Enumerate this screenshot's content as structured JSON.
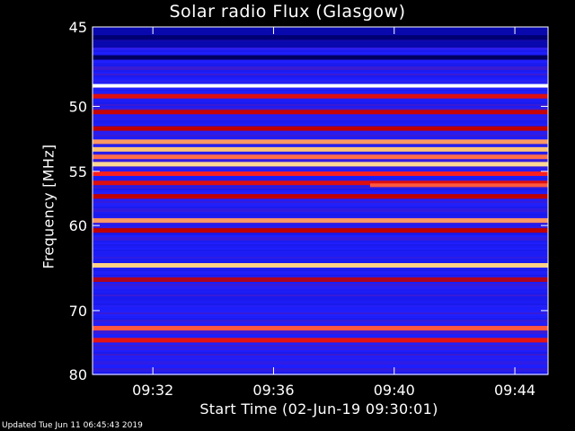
{
  "chart_data": {
    "type": "heatmap",
    "title": "Solar radio Flux (Glasgow)",
    "xlabel": "Start Time (02-Jun-19 09:30:01)",
    "ylabel": "Frequency [MHz]",
    "y_ticks": [
      45,
      50,
      55,
      60,
      70,
      80
    ],
    "x_ticks": [
      "09:32",
      "09:36",
      "09:40",
      "09:44"
    ],
    "x_tick_minutes": [
      32,
      36,
      40,
      44
    ],
    "x_range_minutes": [
      30.0,
      45.1
    ],
    "y_range_mhz": [
      45,
      80
    ],
    "y_scale": "reciprocal",
    "colormap": [
      "#000000",
      "#0000a0",
      "#2020ff",
      "#c00000",
      "#ff2020",
      "#ffd080",
      "#ffffff"
    ],
    "background_level": 0.33,
    "bands": [
      {
        "mhz": 45.6,
        "level": 0.12
      },
      {
        "mhz": 46.8,
        "level": 0.1
      },
      {
        "mhz": 48.6,
        "level": 1.0
      },
      {
        "mhz": 49.3,
        "level": 0.58
      },
      {
        "mhz": 50.4,
        "level": 0.52
      },
      {
        "mhz": 51.6,
        "level": 0.5
      },
      {
        "mhz": 52.6,
        "level": 0.78
      },
      {
        "mhz": 53.2,
        "level": 0.82
      },
      {
        "mhz": 53.8,
        "level": 0.74
      },
      {
        "mhz": 54.4,
        "level": 0.86
      },
      {
        "mhz": 55.2,
        "level": 0.66
      },
      {
        "mhz": 56.0,
        "level": 0.58
      },
      {
        "mhz": 57.2,
        "level": 0.5
      },
      {
        "mhz": 59.5,
        "level": 0.78
      },
      {
        "mhz": 60.5,
        "level": 0.5
      },
      {
        "mhz": 64.3,
        "level": 0.84
      },
      {
        "mhz": 66.0,
        "level": 0.48
      },
      {
        "mhz": 72.5,
        "level": 0.72
      },
      {
        "mhz": 74.3,
        "level": 0.6
      }
    ],
    "burst": {
      "mhz": 56.2,
      "from_minute": 39.2,
      "to_minute": 45.1,
      "level": 0.72
    },
    "updated": "Updated Tue Jun 11 06:45:43 2019"
  }
}
